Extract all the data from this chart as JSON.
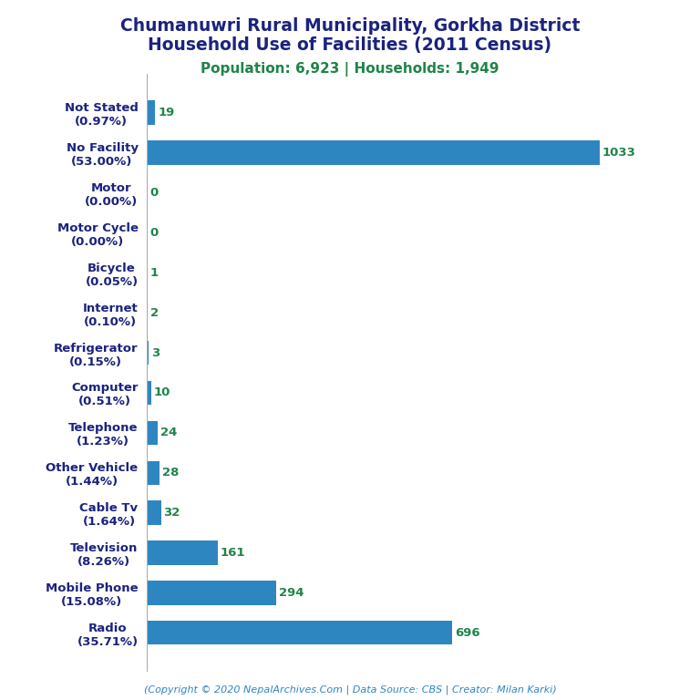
{
  "title_line1": "Chumanuwri Rural Municipality, Gorkha District",
  "title_line2": "Household Use of Facilities (2011 Census)",
  "subtitle": "Population: 6,923 | Households: 1,949",
  "footer": "(Copyright © 2020 NepalArchives.Com | Data Source: CBS | Creator: Milan Karki)",
  "categories": [
    "Not Stated\n(0.97%)",
    "No Facility\n(53.00%)",
    "Motor\n(0.00%)",
    "Motor Cycle\n(0.00%)",
    "Bicycle\n(0.05%)",
    "Internet\n(0.10%)",
    "Refrigerator\n(0.15%)",
    "Computer\n(0.51%)",
    "Telephone\n(1.23%)",
    "Other Vehicle\n(1.44%)",
    "Cable Tv\n(1.64%)",
    "Television\n(8.26%)",
    "Mobile Phone\n(15.08%)",
    "Radio\n(35.71%)"
  ],
  "values": [
    19,
    1033,
    0,
    0,
    1,
    2,
    3,
    10,
    24,
    28,
    32,
    161,
    294,
    696
  ],
  "bar_color": "#2e86c1",
  "value_color": "#1e8449",
  "title_color": "#1a237e",
  "subtitle_color": "#1e8449",
  "footer_color": "#2e86c1",
  "background_color": "#ffffff",
  "xlim_max": 1150
}
